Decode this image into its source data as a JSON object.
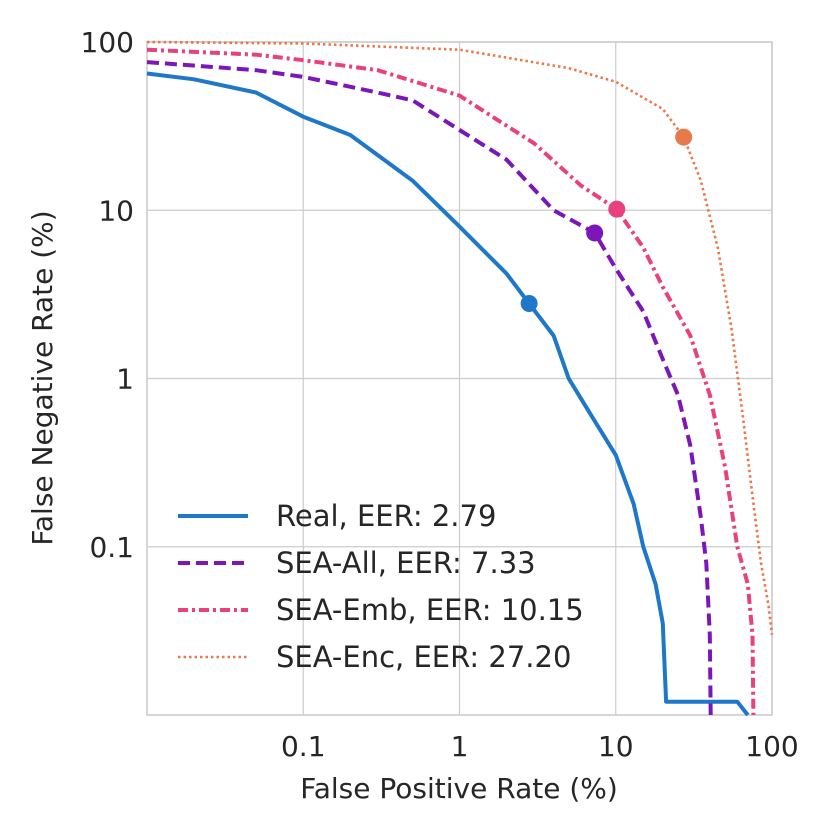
{
  "chart_data": {
    "type": "line",
    "xlabel": "False Positive Rate (%)",
    "ylabel": "False Negative Rate (%)",
    "xscale": "log",
    "yscale": "log",
    "xlim": [
      0.01,
      100
    ],
    "ylim": [
      0.01,
      100
    ],
    "x_ticks": [
      {
        "value": 0.1,
        "label": "0.1"
      },
      {
        "value": 1,
        "label": "1"
      },
      {
        "value": 10,
        "label": "10"
      },
      {
        "value": 100,
        "label": "100"
      }
    ],
    "y_ticks": [
      {
        "value": 0.1,
        "label": "0.1"
      },
      {
        "value": 1,
        "label": "1"
      },
      {
        "value": 10,
        "label": "10"
      },
      {
        "value": 100,
        "label": "100"
      }
    ],
    "grid": true,
    "legend_position": "lower-left",
    "series": [
      {
        "name": "Real, EER: 2.79",
        "color": "#1f77c9",
        "style": "solid",
        "eer": 2.79,
        "points": [
          [
            0.01,
            65
          ],
          [
            0.02,
            60
          ],
          [
            0.05,
            50
          ],
          [
            0.1,
            36
          ],
          [
            0.2,
            28
          ],
          [
            0.5,
            15
          ],
          [
            1,
            8
          ],
          [
            2,
            4.2
          ],
          [
            2.79,
            2.79
          ],
          [
            4,
            1.8
          ],
          [
            5,
            1.0
          ],
          [
            7,
            0.6
          ],
          [
            10,
            0.35
          ],
          [
            13,
            0.18
          ],
          [
            15,
            0.1
          ],
          [
            18,
            0.06
          ],
          [
            20,
            0.035
          ],
          [
            21,
            0.012
          ],
          [
            60,
            0.012
          ],
          [
            70,
            0.01
          ]
        ]
      },
      {
        "name": "SEA-All, EER: 7.33",
        "color": "#7b16b8",
        "style": "dashed",
        "eer": 7.33,
        "points": [
          [
            0.01,
            76
          ],
          [
            0.05,
            68
          ],
          [
            0.1,
            62
          ],
          [
            0.3,
            50
          ],
          [
            0.5,
            45
          ],
          [
            1,
            30
          ],
          [
            2,
            20
          ],
          [
            4,
            10
          ],
          [
            7.33,
            7.33
          ],
          [
            10,
            4.5
          ],
          [
            15,
            2.5
          ],
          [
            20,
            1.3
          ],
          [
            25,
            0.8
          ],
          [
            30,
            0.4
          ],
          [
            35,
            0.15
          ],
          [
            38,
            0.08
          ],
          [
            40,
            0.03
          ],
          [
            40.5,
            0.01
          ]
        ]
      },
      {
        "name": "SEA-Emb, EER: 10.15",
        "color": "#e8417e",
        "style": "dash-dot",
        "eer": 10.15,
        "points": [
          [
            0.01,
            90
          ],
          [
            0.05,
            84
          ],
          [
            0.1,
            78
          ],
          [
            0.3,
            68
          ],
          [
            1,
            48
          ],
          [
            3,
            25
          ],
          [
            6,
            14
          ],
          [
            10.15,
            10.15
          ],
          [
            15,
            6
          ],
          [
            20,
            3.5
          ],
          [
            30,
            1.8
          ],
          [
            40,
            0.8
          ],
          [
            50,
            0.3
          ],
          [
            60,
            0.1
          ],
          [
            70,
            0.06
          ],
          [
            75,
            0.03
          ],
          [
            76,
            0.01
          ]
        ]
      },
      {
        "name": "SEA-Enc, EER: 27.20",
        "color": "#e8794a",
        "style": "dotted",
        "eer": 27.2,
        "points": [
          [
            0.01,
            100
          ],
          [
            0.1,
            98
          ],
          [
            1,
            90
          ],
          [
            5,
            70
          ],
          [
            10,
            58
          ],
          [
            20,
            40
          ],
          [
            27.2,
            27.2
          ],
          [
            35,
            15
          ],
          [
            45,
            6
          ],
          [
            55,
            2
          ],
          [
            65,
            0.6
          ],
          [
            75,
            0.2
          ],
          [
            85,
            0.08
          ],
          [
            95,
            0.045
          ],
          [
            100,
            0.03
          ]
        ]
      }
    ]
  }
}
